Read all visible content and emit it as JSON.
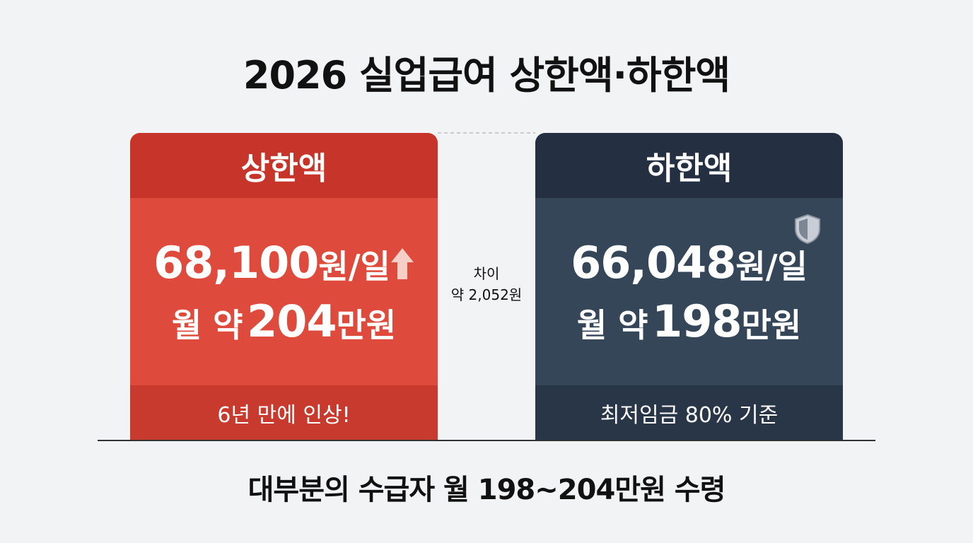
{
  "title": "2026 실업급여 상한액·하한액",
  "cards": [
    {
      "header": "상한액",
      "daily": {
        "amount": "68,100",
        "unit": "원/일"
      },
      "monthly": {
        "prefix": "월 약",
        "amount": "204",
        "unit": "만원"
      },
      "footer": "6년 만에 인상!"
    },
    {
      "header": "하한액",
      "daily": {
        "amount": "66,048",
        "unit": "원/일"
      },
      "monthly": {
        "prefix": "월 약",
        "amount": "198",
        "unit": "만원"
      },
      "footer": "최저임금 80% 기준"
    }
  ],
  "difference": {
    "label": "차이",
    "value": "약 2,052원"
  },
  "summary": "대부분의 수급자 월 198~204만원 수령"
}
